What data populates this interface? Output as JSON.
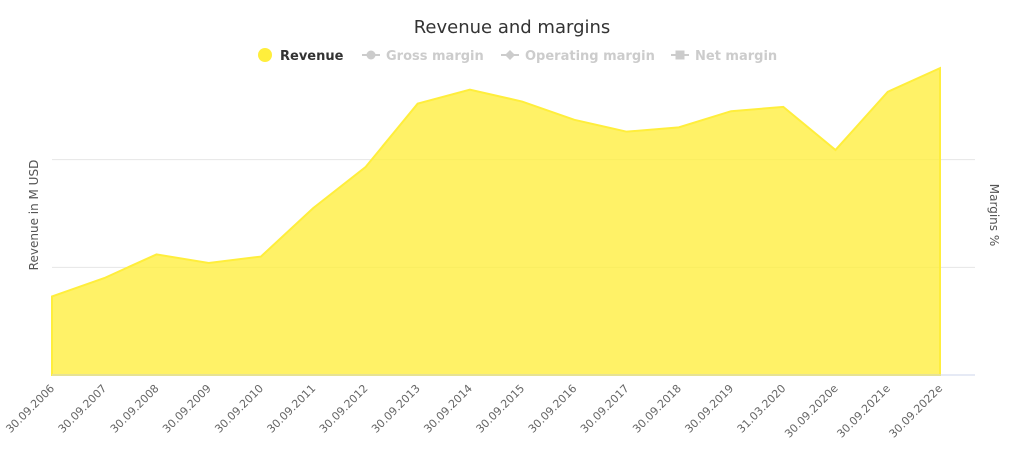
{
  "chart_data": {
    "type": "area",
    "title": "Revenue and margins",
    "ylabel_left": "Revenue in M USD",
    "ylabel_right": "Margins %",
    "categories": [
      "30.09.2006",
      "30.09.2007",
      "30.09.2008",
      "30.09.2009",
      "30.09.2010",
      "30.09.2011",
      "30.09.2012",
      "30.09.2013",
      "30.09.2014",
      "30.09.2015",
      "30.09.2016",
      "30.09.2017",
      "30.09.2018",
      "30.09.2019",
      "31.03.2020",
      "30.09.2020e",
      "30.09.2021e",
      "30.09.2022e"
    ],
    "series": [
      {
        "name": "Revenue",
        "color": "#ffee3c",
        "active": true,
        "values": [
          0.73,
          0.9,
          1.12,
          1.04,
          1.1,
          1.55,
          1.93,
          2.52,
          2.65,
          2.54,
          2.37,
          2.26,
          2.3,
          2.45,
          2.49,
          2.09,
          2.63,
          2.85
        ]
      }
    ],
    "legend": [
      {
        "name": "Revenue",
        "color": "#ffee3c",
        "active": true,
        "marker": "circle"
      },
      {
        "name": "Gross margin",
        "color": "#cccccc",
        "active": false,
        "marker": "circle"
      },
      {
        "name": "Operating margin",
        "color": "#cccccc",
        "active": false,
        "marker": "diamond"
      },
      {
        "name": "Net margin",
        "color": "#cccccc",
        "active": false,
        "marker": "square"
      }
    ],
    "legend_position": "top-center",
    "ylim": [
      0,
      3
    ],
    "gridlines_at": [
      1,
      2
    ],
    "grid": true,
    "y_tick_labels_shown": false
  }
}
